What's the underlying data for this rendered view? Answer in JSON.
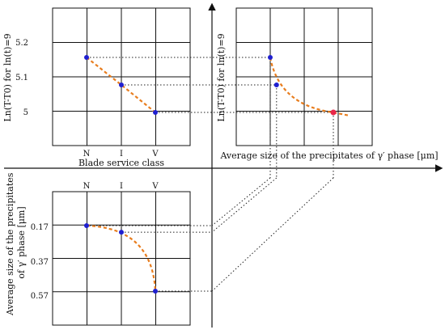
{
  "chart_data": [
    {
      "type": "scatter",
      "panel": "top-left",
      "ylabel": "Ln(T-T0) for ln(t)=9",
      "xlabel": "Blade service class",
      "categories": [
        "N",
        "I",
        "V"
      ],
      "yticks": [
        "5.2",
        "5.1",
        "5"
      ],
      "series": [
        {
          "values": [
            5.16,
            5.08,
            5.0
          ],
          "color": "#e87d1e",
          "marker": "#1f1fd0"
        }
      ]
    },
    {
      "type": "scatter",
      "panel": "top-right",
      "ylabel": "Ln(T-T0) for ln(t)=9",
      "xlabel": "Average size of the precipitates of γ′ phase [μm]",
      "series": [
        {
          "points": [
            {
              "x": 0.17,
              "y": 5.16
            },
            {
              "x": 0.21,
              "y": 5.08
            },
            {
              "x": 0.57,
              "y": 5.0
            }
          ],
          "color": "#e87d1e",
          "marker": "#1f1fd0",
          "highlight": "#e8264a"
        }
      ]
    },
    {
      "type": "scatter",
      "panel": "bottom-left",
      "ylabel": "Average size of the precipitates of γ′ phase [μm]",
      "categories": [
        "N",
        "I",
        "V"
      ],
      "yticks": [
        "0.17",
        "0.37",
        "0.57"
      ],
      "series": [
        {
          "values": [
            0.17,
            0.21,
            0.57
          ],
          "color": "#e87d1e",
          "marker": "#1f1fd0"
        }
      ]
    }
  ]
}
